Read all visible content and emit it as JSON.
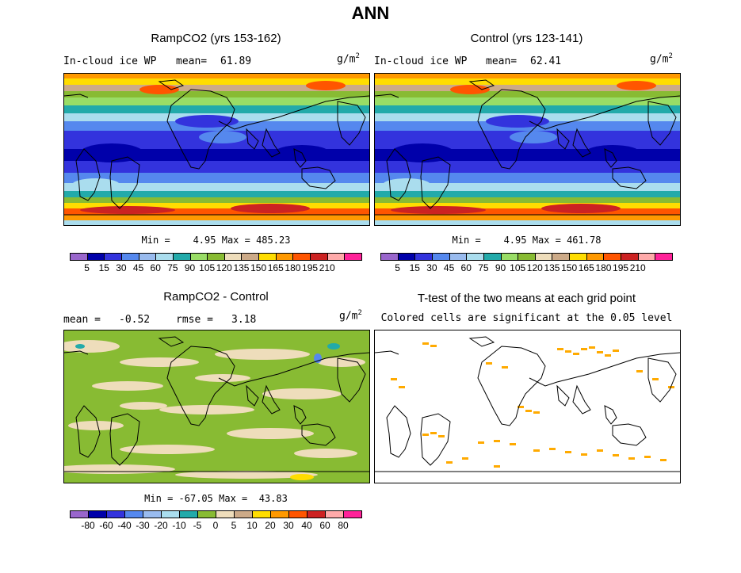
{
  "title": "ANN",
  "panels": [
    {
      "title": "RampCO2 (yrs 153-162)",
      "left_label": "In-cloud ice WP",
      "mean_label": "mean=",
      "mean_value": "61.89",
      "units_base": "g/m",
      "units_exp": "2",
      "min_label": "Min =",
      "min_value": "4.95",
      "max_label": "Max =",
      "max_value": "485.23"
    },
    {
      "title": "Control (yrs 123-141)",
      "left_label": "In-cloud ice WP",
      "mean_label": "mean=",
      "mean_value": "62.41",
      "units_base": "g/m",
      "units_exp": "2",
      "min_label": "Min =",
      "min_value": "4.95",
      "max_label": "Max =",
      "max_value": "461.78"
    },
    {
      "title": "RampCO2 - Control",
      "mean_label": "mean =",
      "mean_value": "-0.52",
      "rmse_label": "rmse =",
      "rmse_value": "3.18",
      "units_base": "g/m",
      "units_exp": "2",
      "min_label": "Min =",
      "min_value": "-67.05",
      "max_label": "Max =",
      "max_value": "43.83"
    },
    {
      "title": "T-test of the two means at each grid point",
      "subtitle": "Colored cells are significant at the 0.05 level"
    }
  ],
  "colorbars": {
    "field": {
      "colors": [
        "#9966cc",
        "#0000aa",
        "#3333dd",
        "#5588ee",
        "#99bbee",
        "#aaddee",
        "#22aaaa",
        "#99dd66",
        "#88bb33",
        "#eeddbb",
        "#ccaa88",
        "#ffdd00",
        "#ff9900",
        "#ff5500",
        "#cc2222",
        "#ffaaaa",
        "#ff2299"
      ],
      "labels": [
        "5",
        "15",
        "30",
        "45",
        "60",
        "75",
        "90",
        "105",
        "120",
        "135",
        "150",
        "165",
        "180",
        "195",
        "210"
      ]
    },
    "diff": {
      "colors": [
        "#9966cc",
        "#0000aa",
        "#3333dd",
        "#5588ee",
        "#99bbee",
        "#aaddee",
        "#22aaaa",
        "#88bb33",
        "#eeddbb",
        "#ccaa88",
        "#ffdd00",
        "#ff9900",
        "#ff5500",
        "#cc2222",
        "#ffaaaa",
        "#ff2299"
      ],
      "labels": [
        "-80",
        "-60",
        "-40",
        "-30",
        "-20",
        "-10",
        "-5",
        "0",
        "5",
        "10",
        "20",
        "30",
        "40",
        "60",
        "80"
      ]
    }
  },
  "significance_color": "#ffaa00",
  "coastline_color": "#000000"
}
